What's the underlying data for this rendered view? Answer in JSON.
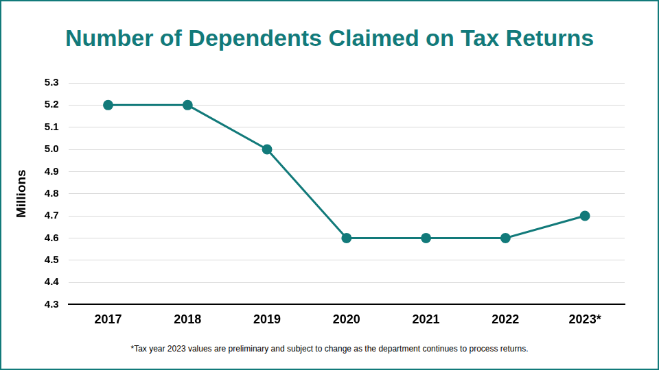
{
  "chart_data": {
    "type": "line",
    "title": "Number of Dependents Claimed on Tax Returns",
    "y_label": "Millions",
    "categories": [
      "2017",
      "2018",
      "2019",
      "2020",
      "2021",
      "2022",
      "2023*"
    ],
    "values": [
      5.2,
      5.2,
      5.0,
      4.6,
      4.6,
      4.6,
      4.7
    ],
    "color": "#127a7a",
    "marker": "circle",
    "line_style": "solid",
    "ylim": [
      4.3,
      5.3
    ],
    "yticks": [
      4.3,
      4.4,
      4.5,
      4.6,
      4.7,
      4.8,
      4.9,
      {
        "value": 5,
        "label": "5.0"
      },
      5.1,
      5.2,
      5.3
    ],
    "grid": true,
    "annotations": [
      "*Tax year 2023 values are preliminary and subject to change as the department continues to process returns."
    ]
  }
}
